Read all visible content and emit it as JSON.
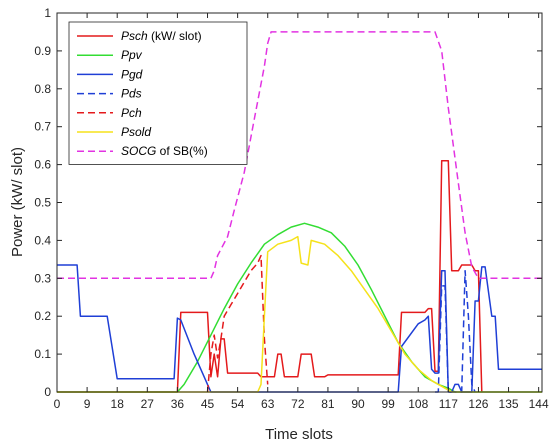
{
  "chart_data": {
    "type": "line",
    "xlabel": "Time slots",
    "ylabel": "Power (kW/ slot)",
    "xlim": [
      0,
      145
    ],
    "ylim": [
      0,
      1
    ],
    "xticks": [
      0,
      9,
      18,
      27,
      36,
      45,
      54,
      63,
      72,
      81,
      90,
      99,
      108,
      117,
      126,
      135,
      144
    ],
    "yticks": [
      0,
      0.1,
      0.2,
      0.3,
      0.4,
      0.5,
      0.6,
      0.7,
      0.8,
      0.9,
      1
    ],
    "ytick_labels": [
      "0",
      "0.1",
      "0.2",
      "0.3",
      "0.4",
      "0.5",
      "0.6",
      "0.7",
      "0.8",
      "0.9",
      "1"
    ],
    "grid": false,
    "legend_position": "top-left",
    "series": [
      {
        "name_italic": "Psch",
        "name_rest": " (kW/ slot)",
        "color": "#e41a1c",
        "dash": "solid",
        "points": [
          [
            0,
            0
          ],
          [
            36,
            0
          ],
          [
            37,
            0.21
          ],
          [
            45,
            0.21
          ],
          [
            46,
            0.04
          ],
          [
            47,
            0.1
          ],
          [
            48,
            0.04
          ],
          [
            49,
            0.14
          ],
          [
            50,
            0.14
          ],
          [
            51,
            0.05
          ],
          [
            60,
            0.05
          ],
          [
            61,
            0.04
          ],
          [
            65,
            0.04
          ],
          [
            66,
            0.1
          ],
          [
            67,
            0.1
          ],
          [
            68,
            0.04
          ],
          [
            72,
            0.04
          ],
          [
            73,
            0.1
          ],
          [
            76,
            0.1
          ],
          [
            77,
            0.04
          ],
          [
            80,
            0.04
          ],
          [
            81,
            0.045
          ],
          [
            102,
            0.045
          ],
          [
            103,
            0.21
          ],
          [
            110,
            0.21
          ],
          [
            111,
            0.22
          ],
          [
            112,
            0.22
          ],
          [
            113,
            0.055
          ],
          [
            114,
            0.055
          ],
          [
            115,
            0.61
          ],
          [
            117,
            0.61
          ],
          [
            118,
            0.32
          ],
          [
            120,
            0.32
          ],
          [
            121,
            0.335
          ],
          [
            124,
            0.335
          ],
          [
            125,
            0.32
          ],
          [
            126,
            0.32
          ],
          [
            127,
            0
          ]
        ]
      },
      {
        "name_italic": "Ppv",
        "name_rest": "",
        "color": "#33dd33",
        "dash": "solid",
        "points": [
          [
            0,
            0
          ],
          [
            36,
            0
          ],
          [
            38,
            0.02
          ],
          [
            42,
            0.08
          ],
          [
            46,
            0.15
          ],
          [
            50,
            0.22
          ],
          [
            54,
            0.285
          ],
          [
            58,
            0.34
          ],
          [
            62,
            0.39
          ],
          [
            66,
            0.415
          ],
          [
            70,
            0.435
          ],
          [
            74,
            0.445
          ],
          [
            78,
            0.435
          ],
          [
            82,
            0.42
          ],
          [
            86,
            0.385
          ],
          [
            90,
            0.335
          ],
          [
            94,
            0.27
          ],
          [
            98,
            0.2
          ],
          [
            102,
            0.13
          ],
          [
            106,
            0.08
          ],
          [
            110,
            0.04
          ],
          [
            114,
            0.02
          ],
          [
            117,
            0.01
          ],
          [
            119,
            0
          ],
          [
            145,
            0
          ]
        ]
      },
      {
        "name_italic": "Pgd",
        "name_rest": "",
        "color": "#1f3fd6",
        "dash": "solid",
        "points": [
          [
            0,
            0.335
          ],
          [
            6,
            0.335
          ],
          [
            7,
            0.2
          ],
          [
            15,
            0.2
          ],
          [
            18,
            0.035
          ],
          [
            35,
            0.035
          ],
          [
            36,
            0.195
          ],
          [
            37,
            0.19
          ],
          [
            41,
            0.1
          ],
          [
            45,
            0.02
          ],
          [
            46,
            0
          ],
          [
            102,
            0
          ],
          [
            103,
            0.12
          ],
          [
            108,
            0.18
          ],
          [
            110,
            0.19
          ],
          [
            111,
            0.2
          ],
          [
            112,
            0.06
          ],
          [
            113,
            0.05
          ],
          [
            114,
            0.05
          ],
          [
            115,
            0.32
          ],
          [
            116,
            0.32
          ],
          [
            117,
            0
          ],
          [
            118,
            0
          ],
          [
            119,
            0.02
          ],
          [
            120,
            0.02
          ],
          [
            121,
            0
          ],
          [
            124,
            0
          ],
          [
            125,
            0.24
          ],
          [
            126,
            0.24
          ],
          [
            127,
            0.33
          ],
          [
            128,
            0.33
          ],
          [
            130,
            0.2
          ],
          [
            131,
            0.2
          ],
          [
            132,
            0.06
          ],
          [
            145,
            0.06
          ]
        ]
      },
      {
        "name_italic": "Pds",
        "name_rest": "",
        "color": "#1f3fd6",
        "dash": "7,4",
        "points": [
          [
            113,
            0
          ],
          [
            114,
            0
          ],
          [
            115,
            0.28
          ],
          [
            116,
            0.28
          ],
          [
            117,
            0
          ],
          [
            121,
            0
          ],
          [
            122,
            0.32
          ],
          [
            123,
            0.2
          ],
          [
            124,
            0.02
          ],
          [
            125,
            0
          ]
        ]
      },
      {
        "name_italic": "Pch",
        "name_rest": "",
        "color": "#e41a1c",
        "dash": "7,4",
        "points": [
          [
            45,
            0
          ],
          [
            46,
            0.1
          ],
          [
            47,
            0.15
          ],
          [
            48,
            0.09
          ],
          [
            49,
            0.14
          ],
          [
            50,
            0.2
          ],
          [
            52,
            0.23
          ],
          [
            54,
            0.26
          ],
          [
            56,
            0.29
          ],
          [
            58,
            0.32
          ],
          [
            60,
            0.34
          ],
          [
            61,
            0.36
          ],
          [
            62,
            0.14
          ],
          [
            63,
            0.02
          ]
        ]
      },
      {
        "name_italic": "Psold",
        "name_rest": "",
        "color": "#f5e21a",
        "dash": "solid",
        "points": [
          [
            0,
            0
          ],
          [
            60,
            0
          ],
          [
            61,
            0.02
          ],
          [
            62,
            0.2
          ],
          [
            63,
            0.37
          ],
          [
            66,
            0.39
          ],
          [
            70,
            0.4
          ],
          [
            72,
            0.41
          ],
          [
            73,
            0.34
          ],
          [
            75,
            0.335
          ],
          [
            76,
            0.4
          ],
          [
            80,
            0.39
          ],
          [
            84,
            0.36
          ],
          [
            88,
            0.32
          ],
          [
            92,
            0.27
          ],
          [
            96,
            0.22
          ],
          [
            100,
            0.16
          ],
          [
            104,
            0.1
          ],
          [
            108,
            0.06
          ],
          [
            112,
            0.03
          ],
          [
            116,
            0.01
          ],
          [
            118,
            0
          ],
          [
            145,
            0
          ]
        ]
      },
      {
        "name_italic": "SOCG",
        "name_rest": " of SB(%)",
        "color": "#e233e2",
        "dash": "7,4",
        "points": [
          [
            0,
            0.3
          ],
          [
            46,
            0.3
          ],
          [
            47,
            0.32
          ],
          [
            48,
            0.36
          ],
          [
            51,
            0.41
          ],
          [
            53,
            0.48
          ],
          [
            56,
            0.58
          ],
          [
            59,
            0.72
          ],
          [
            62,
            0.86
          ],
          [
            63,
            0.92
          ],
          [
            64,
            0.95
          ],
          [
            113,
            0.95
          ],
          [
            115,
            0.9
          ],
          [
            117,
            0.75
          ],
          [
            120,
            0.55
          ],
          [
            122,
            0.42
          ],
          [
            124,
            0.33
          ],
          [
            126,
            0.3
          ],
          [
            145,
            0.3
          ]
        ]
      }
    ]
  }
}
